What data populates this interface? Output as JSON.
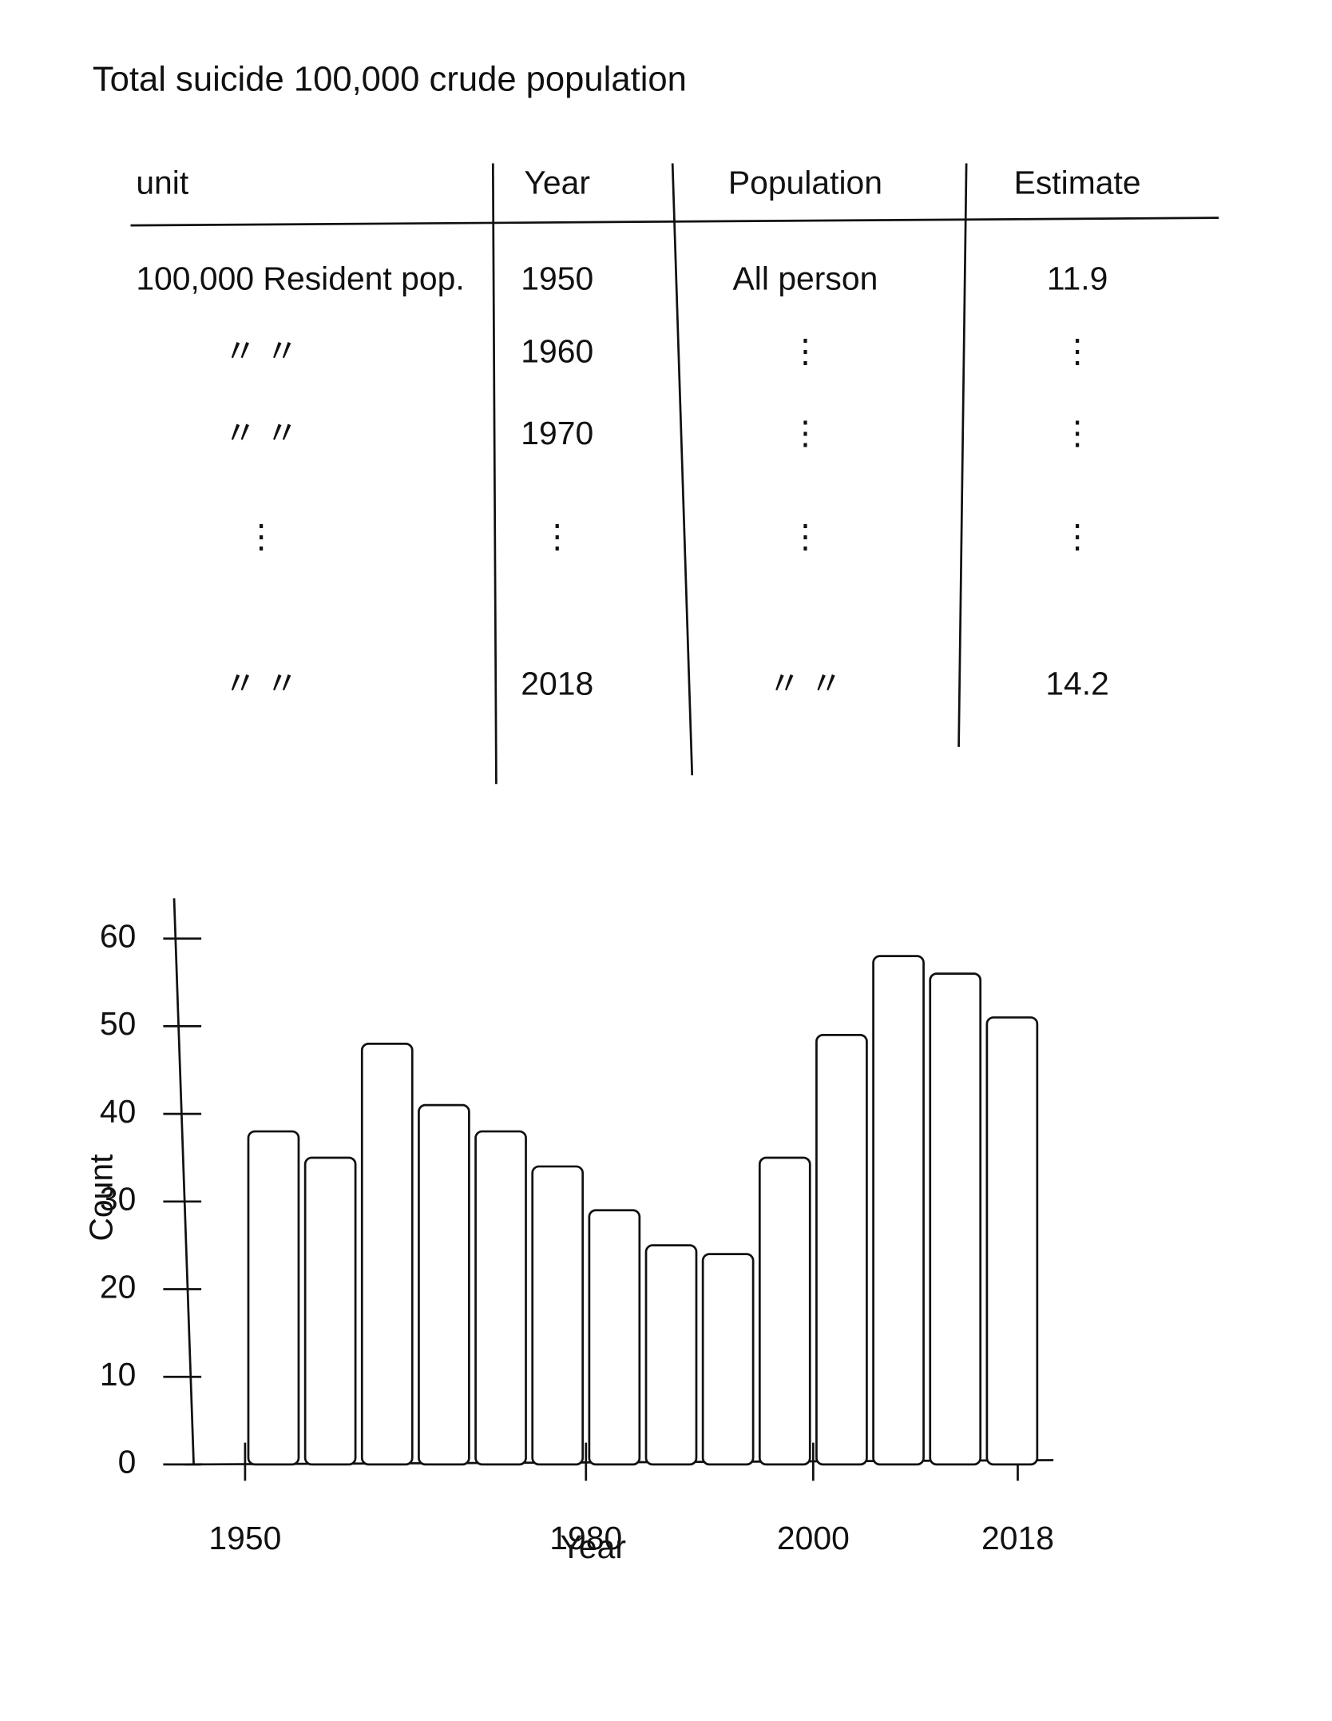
{
  "header": {
    "title": "Total suicide 100,000 crude population"
  },
  "table": {
    "columns": [
      "unit",
      "Year",
      "Population",
      "Estimate"
    ],
    "rows": [
      [
        "100,000 Resident pop.",
        "1950",
        "All person",
        "11.9"
      ],
      [
        "〃 〃",
        "1960",
        "⋮",
        "⋮"
      ],
      [
        "〃 〃",
        "1970",
        "⋮",
        "⋮"
      ],
      [
        "⋮",
        "⋮",
        "⋮",
        "⋮"
      ],
      [
        "〃 〃",
        "2018",
        "〃 〃",
        "14.2"
      ]
    ]
  },
  "chart_data": {
    "type": "histogram",
    "xlabel": "Year",
    "ylabel": "Count",
    "bins": [
      1950,
      1955,
      1960,
      1965,
      1970,
      1975,
      1980,
      1985,
      1990,
      1995,
      2000,
      2005,
      2010,
      2015,
      2020
    ],
    "values": [
      38,
      35,
      48,
      41,
      38,
      34,
      29,
      25,
      24,
      35,
      49,
      58,
      56,
      51
    ],
    "color": "#ffffff",
    "xlim": [
      1945,
      2022
    ],
    "xticks": [
      1950,
      1980,
      2000,
      2018
    ],
    "ylim": [
      0,
      60
    ],
    "yticks": [
      0,
      10,
      20,
      30,
      40,
      50,
      60
    ]
  }
}
